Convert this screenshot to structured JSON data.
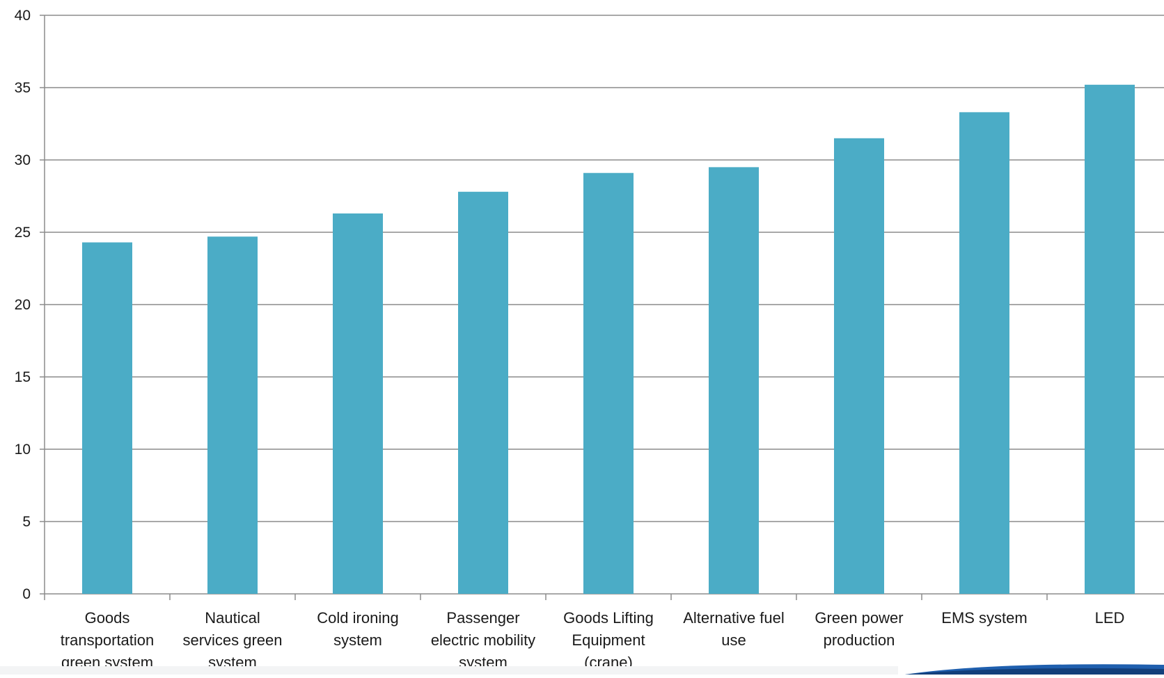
{
  "chart_data": {
    "type": "bar",
    "title": "",
    "xlabel": "",
    "ylabel": "",
    "ylim": [
      0,
      40
    ],
    "yticks": [
      0,
      5,
      10,
      15,
      20,
      25,
      30,
      35,
      40
    ],
    "grid": true,
    "bar_color": "#4bacc6",
    "categories": [
      [
        "Goods",
        "transportation",
        "green system"
      ],
      [
        "Nautical",
        "services green",
        "system"
      ],
      [
        "Cold ironing",
        "system"
      ],
      [
        "Passenger",
        "electric mobility",
        "system"
      ],
      [
        "Goods Lifting",
        "Equipment",
        "(crane)"
      ],
      [
        "Alternative fuel",
        "use"
      ],
      [
        "Green power",
        "production"
      ],
      [
        "EMS system"
      ],
      [
        "LED"
      ]
    ],
    "values": [
      24.3,
      24.7,
      26.3,
      27.8,
      29.1,
      29.5,
      31.5,
      33.3,
      35.2
    ]
  }
}
